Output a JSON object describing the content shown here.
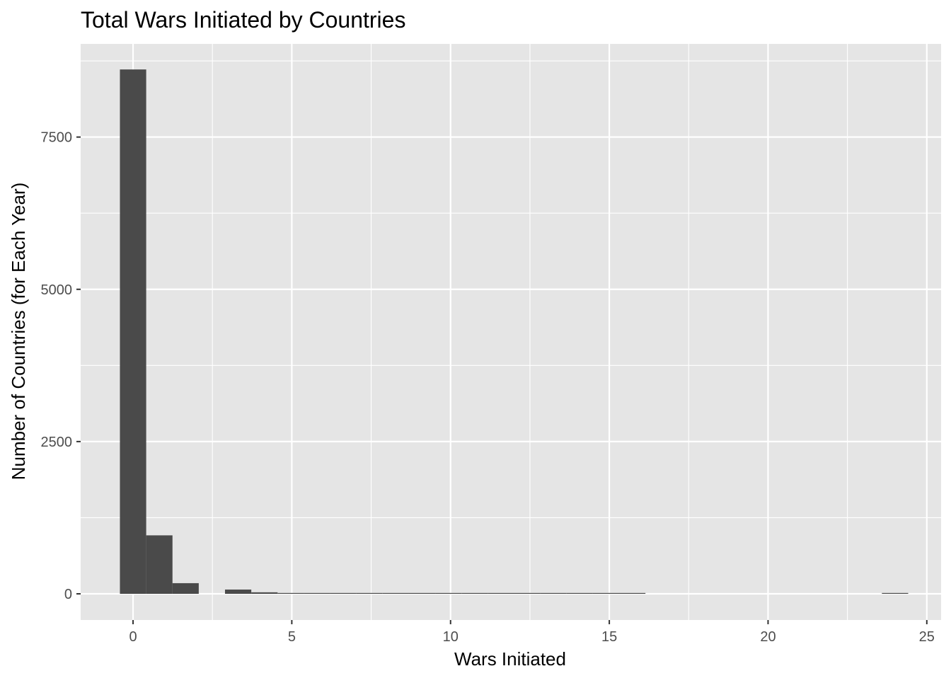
{
  "chart_data": {
    "type": "bar",
    "title": "Total Wars Initiated by Countries",
    "xlabel": "Wars Initiated",
    "ylabel": "Number of Countries (for Each Year)",
    "xlim": [
      -1.65,
      25.45
    ],
    "ylim": [
      -430,
      9030
    ],
    "x_ticks": [
      0,
      5,
      10,
      15,
      20,
      25
    ],
    "y_ticks": [
      0,
      2500,
      5000,
      7500
    ],
    "x_minor_ticks": [
      2.5,
      7.5,
      12.5,
      17.5,
      22.5
    ],
    "y_minor_ticks": [
      1250,
      3750,
      6250,
      8750
    ],
    "grid": true,
    "bin_width": 0.828,
    "bins": [
      {
        "x": 0.0,
        "count": 8610
      },
      {
        "x": 0.828,
        "count": 960
      },
      {
        "x": 1.655,
        "count": 175
      },
      {
        "x": 2.483,
        "count": 0
      },
      {
        "x": 3.31,
        "count": 70
      },
      {
        "x": 4.138,
        "count": 25
      },
      {
        "x": 4.966,
        "count": 12
      },
      {
        "x": 5.793,
        "count": 10
      },
      {
        "x": 6.621,
        "count": 5
      },
      {
        "x": 7.448,
        "count": 3
      },
      {
        "x": 8.276,
        "count": 3
      },
      {
        "x": 9.103,
        "count": 2
      },
      {
        "x": 9.931,
        "count": 2
      },
      {
        "x": 10.759,
        "count": 1
      },
      {
        "x": 11.586,
        "count": 1
      },
      {
        "x": 12.414,
        "count": 1
      },
      {
        "x": 13.241,
        "count": 1
      },
      {
        "x": 14.069,
        "count": 1
      },
      {
        "x": 14.897,
        "count": 2
      },
      {
        "x": 15.724,
        "count": 1
      },
      {
        "x": 16.552,
        "count": 0
      },
      {
        "x": 17.379,
        "count": 0
      },
      {
        "x": 18.207,
        "count": 0
      },
      {
        "x": 19.034,
        "count": 0
      },
      {
        "x": 19.862,
        "count": 0
      },
      {
        "x": 20.69,
        "count": 0
      },
      {
        "x": 21.517,
        "count": 0
      },
      {
        "x": 22.345,
        "count": 0
      },
      {
        "x": 23.172,
        "count": 0
      },
      {
        "x": 24.0,
        "count": 1
      }
    ],
    "colors": {
      "panel": "#e5e5e5",
      "grid": "#ffffff",
      "bar": "#4a4a4a",
      "axis_text": "#4d4d4d",
      "tick": "#333333",
      "title": "#000000"
    }
  }
}
